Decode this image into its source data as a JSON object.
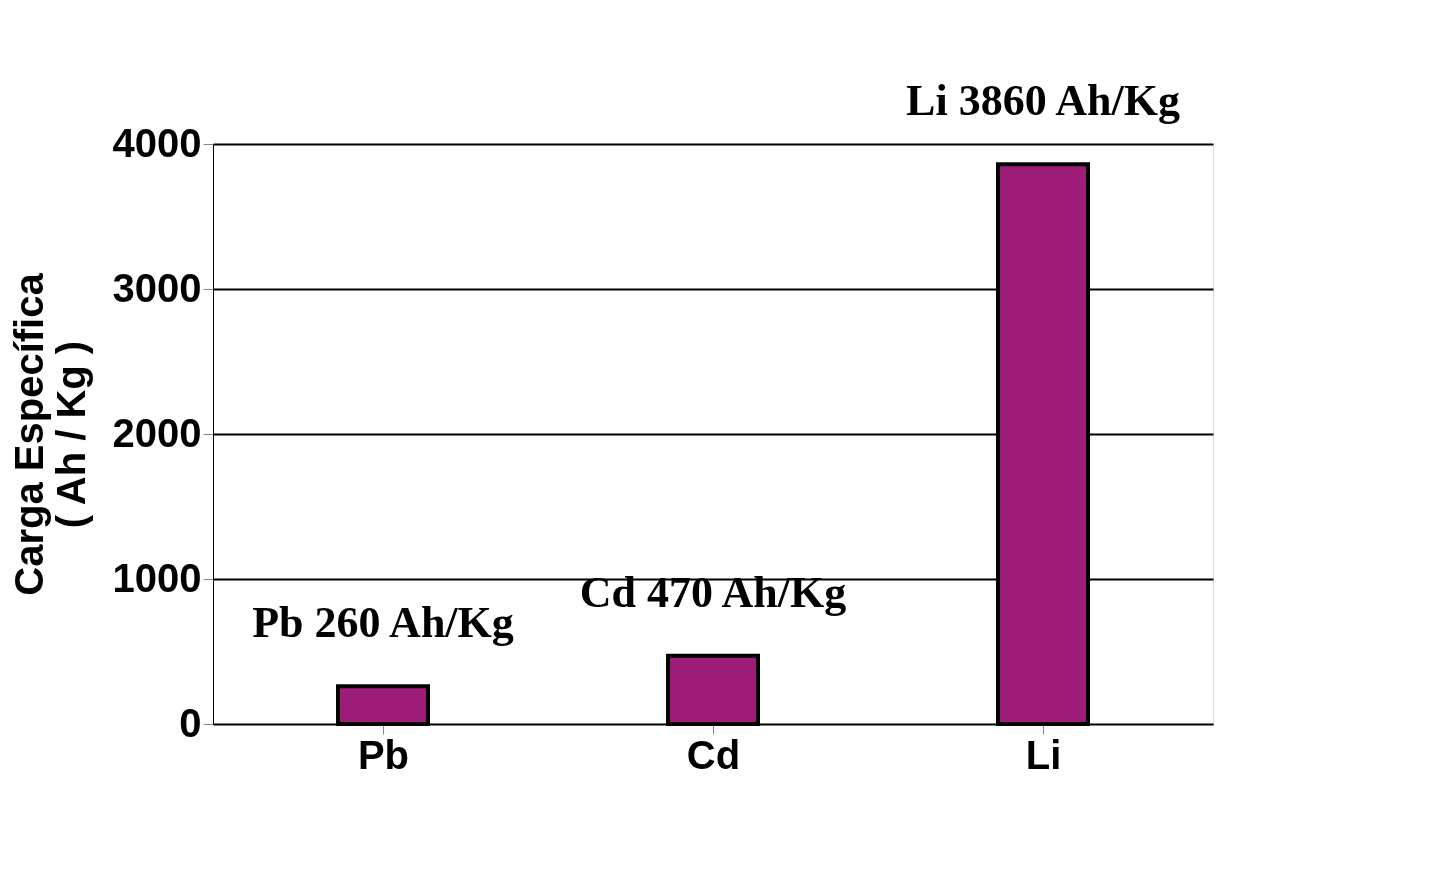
{
  "chart_data": {
    "type": "bar",
    "ylabel": "Carga Específica\n( Ah / Kg )",
    "categories": [
      "Pb",
      "Cd",
      "Li"
    ],
    "values": [
      260,
      470,
      3860
    ],
    "color": "#9c1c78",
    "value_labels": [
      "Pb 260 Ah/Kg",
      "Cd 470 Ah/Kg",
      "Li  3860 Ah/Kg"
    ],
    "ylim": [
      0,
      4000
    ],
    "yticks": [
      0,
      1000,
      2000,
      3000,
      4000
    ],
    "grid": "y"
  }
}
